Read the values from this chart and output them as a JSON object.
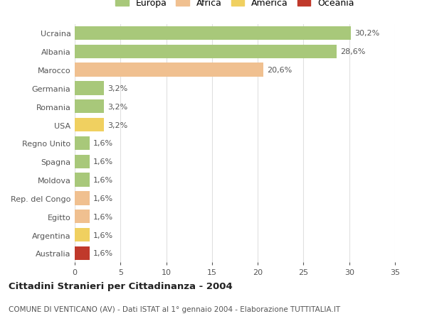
{
  "countries": [
    "Ucraina",
    "Albania",
    "Marocco",
    "Germania",
    "Romania",
    "USA",
    "Regno Unito",
    "Spagna",
    "Moldova",
    "Rep. del Congo",
    "Egitto",
    "Argentina",
    "Australia"
  ],
  "values": [
    30.2,
    28.6,
    20.6,
    3.2,
    3.2,
    3.2,
    1.6,
    1.6,
    1.6,
    1.6,
    1.6,
    1.6,
    1.6
  ],
  "labels": [
    "30,2%",
    "28,6%",
    "20,6%",
    "3,2%",
    "3,2%",
    "3,2%",
    "1,6%",
    "1,6%",
    "1,6%",
    "1,6%",
    "1,6%",
    "1,6%",
    "1,6%"
  ],
  "colors": [
    "#a8c87a",
    "#a8c87a",
    "#f0c090",
    "#a8c87a",
    "#a8c87a",
    "#f0d060",
    "#a8c87a",
    "#a8c87a",
    "#a8c87a",
    "#f0c090",
    "#f0c090",
    "#f0d060",
    "#c0392b"
  ],
  "legend": [
    {
      "label": "Europa",
      "color": "#a8c87a"
    },
    {
      "label": "Africa",
      "color": "#f0c090"
    },
    {
      "label": "America",
      "color": "#f0d060"
    },
    {
      "label": "Oceania",
      "color": "#c0392b"
    }
  ],
  "title": "Cittadini Stranieri per Cittadinanza - 2004",
  "subtitle": "COMUNE DI VENTICANO (AV) - Dati ISTAT al 1° gennaio 2004 - Elaborazione TUTTITALIA.IT",
  "xlim": [
    0,
    35
  ],
  "xticks": [
    0,
    5,
    10,
    15,
    20,
    25,
    30,
    35
  ],
  "bg_color": "#ffffff",
  "grid_color": "#e0e0e0",
  "bar_height": 0.75
}
